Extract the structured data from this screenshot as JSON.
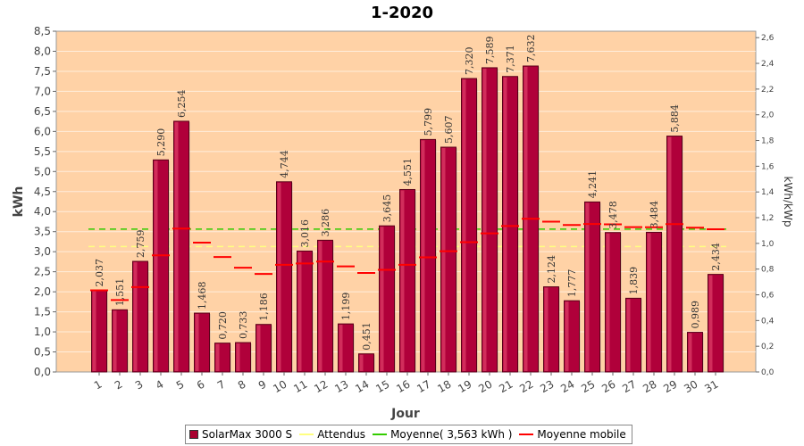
{
  "chart_data": {
    "type": "bar",
    "title": "1-2020",
    "xlabel": "Jour",
    "ylabel": "kWh",
    "ylabel_right": "kWh/kWp",
    "ylim": [
      0,
      8.5
    ],
    "ylim_right": [
      0,
      2.65
    ],
    "yticks": [
      "0,0",
      "0,5",
      "1,0",
      "1,5",
      "2,0",
      "2,5",
      "3,0",
      "3,5",
      "4,0",
      "4,5",
      "5,0",
      "5,5",
      "6,0",
      "6,5",
      "7,0",
      "7,5",
      "8,0",
      "8,5"
    ],
    "yticks_right": [
      "0,0",
      "0,2",
      "0,4",
      "0,6",
      "0,8",
      "1,0",
      "1,2",
      "1,4",
      "1,6",
      "1,8",
      "2,0",
      "2,2",
      "2,4",
      "2,6"
    ],
    "categories": [
      "1",
      "2",
      "3",
      "4",
      "5",
      "6",
      "7",
      "8",
      "9",
      "10",
      "11",
      "12",
      "13",
      "14",
      "15",
      "16",
      "17",
      "18",
      "19",
      "20",
      "21",
      "22",
      "23",
      "24",
      "25",
      "26",
      "27",
      "28",
      "29",
      "30",
      "31"
    ],
    "series": [
      {
        "name": "SolarMax 3000 S",
        "kind": "bar",
        "color": "#c8003c",
        "values": [
          2.037,
          1.551,
          2.759,
          5.29,
          6.254,
          1.468,
          0.72,
          0.733,
          1.186,
          4.744,
          3.016,
          3.286,
          1.199,
          0.451,
          3.645,
          4.551,
          5.799,
          5.607,
          7.32,
          7.589,
          7.371,
          7.632,
          2.124,
          1.777,
          4.241,
          3.478,
          1.839,
          3.484,
          5.884,
          0.989,
          2.434
        ],
        "labels": [
          "2,037",
          "1,551",
          "2,759",
          "5,290",
          "6,254",
          "1,468",
          "0,720",
          "0,733",
          "1,186",
          "4,744",
          "3,016",
          "3,286",
          "1,199",
          "0,451",
          "3,645",
          "4,551",
          "5,799",
          "5,607",
          "7,320",
          "7,589",
          "7,371",
          "7,632",
          "2,124",
          "1,777",
          "4,241",
          "3,478",
          "1,839",
          "3,484",
          "5,884",
          "0,989",
          "2,434"
        ]
      },
      {
        "name": "Attendus",
        "kind": "line",
        "color": "#ffff80",
        "value": 3.13
      },
      {
        "name": "Moyenne( 3,563 kWh )",
        "kind": "line",
        "color": "#33cc00",
        "value": 3.563
      },
      {
        "name": "Moyenne mobile",
        "kind": "steps",
        "color": "#ff0000",
        "values": [
          2.037,
          1.794,
          2.116,
          2.909,
          3.578,
          3.226,
          2.868,
          2.601,
          2.444,
          2.674,
          2.705,
          2.753,
          2.633,
          2.471,
          2.549,
          2.674,
          2.858,
          3.011,
          3.238,
          3.456,
          3.642,
          3.823,
          3.749,
          3.667,
          3.69,
          3.683,
          3.614,
          3.609,
          3.688,
          3.598,
          3.56
        ]
      }
    ],
    "legend_position": "bottom"
  }
}
